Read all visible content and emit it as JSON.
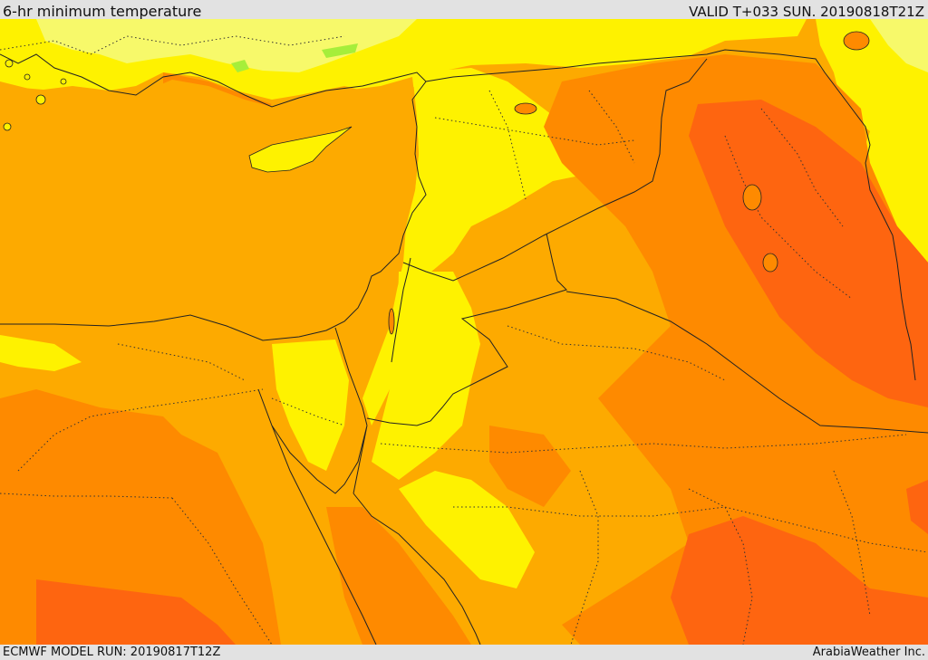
{
  "header": {
    "title": "6-hr minimum temperature",
    "valid": "VALID T+033 SUN. 20190818T21Z"
  },
  "footer": {
    "model_run": "ECMWF MODEL RUN: 20190817T12Z",
    "credit": "ArabiaWeather Inc."
  },
  "palette": {
    "lightest": "#f7f96a",
    "yellow": "#fef200",
    "amber": "#fdaa00",
    "orange": "#fe8a00",
    "dark_orange": "#fe6510",
    "green_patch": "#a6ee3a",
    "border_line": "#222222"
  }
}
